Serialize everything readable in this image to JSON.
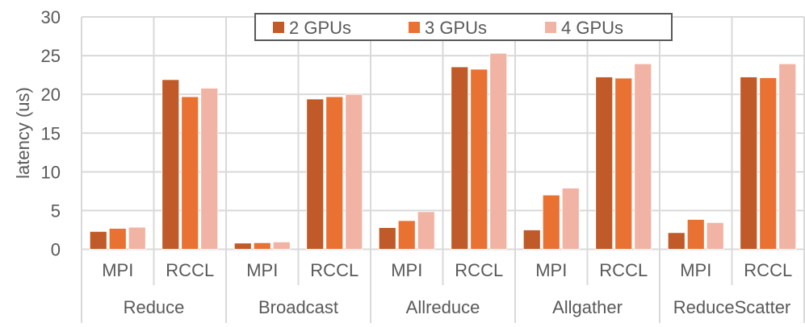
{
  "chart_data": {
    "type": "bar",
    "title": "",
    "xlabel": "",
    "ylabel": "latency (us)",
    "ylim": [
      0,
      30
    ],
    "yticks": [
      0,
      5,
      10,
      15,
      20,
      25,
      30
    ],
    "grid": true,
    "legend_position": "top-center",
    "groups": [
      "Reduce",
      "Broadcast",
      "Allreduce",
      "Allgather",
      "ReduceScatter"
    ],
    "subcategories": [
      "MPI",
      "RCCL"
    ],
    "series": [
      {
        "name": "2 GPUs",
        "color": "#C05A28",
        "values": [
          2.3,
          21.9,
          0.8,
          19.4,
          2.8,
          23.55,
          2.5,
          22.25,
          2.15,
          22.25
        ]
      },
      {
        "name": "3 GPUs",
        "color": "#E97132",
        "values": [
          2.7,
          19.7,
          0.85,
          19.7,
          3.7,
          23.25,
          7.0,
          22.1,
          3.85,
          22.15
        ]
      },
      {
        "name": "4 GPUs",
        "color": "#F1B3A3",
        "values": [
          2.85,
          20.8,
          0.95,
          20.0,
          4.85,
          25.3,
          7.9,
          23.95,
          3.45,
          23.95
        ]
      }
    ]
  }
}
